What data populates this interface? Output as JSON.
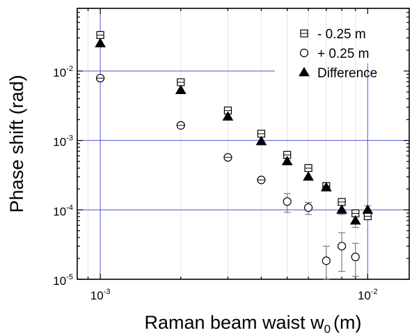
{
  "chart_data": {
    "type": "scatter",
    "xlabel": "Raman beam waist w",
    "xlabel_subscript": "0",
    "xlabel_unit": "(m)",
    "ylabel": "Phase shift (rad)",
    "xscale": "log",
    "yscale": "log",
    "xlim": [
      0.00082,
      0.0143
    ],
    "ylim": [
      1e-05,
      0.08
    ],
    "x_ticks": [
      {
        "value": 0.001,
        "base": "10",
        "exp": "-3"
      },
      {
        "value": 0.01,
        "base": "10",
        "exp": "-2"
      }
    ],
    "y_ticks": [
      {
        "value": 1e-05,
        "base": "10",
        "exp": "-5"
      },
      {
        "value": 0.0001,
        "base": "10",
        "exp": "-4"
      },
      {
        "value": 0.001,
        "base": "10",
        "exp": "-3"
      },
      {
        "value": 0.01,
        "base": "10",
        "exp": "-2"
      }
    ],
    "reference_lines": {
      "horizontal": [
        0.0001,
        0.001,
        0.01
      ],
      "vertical": [
        0.001,
        0.01
      ],
      "color": "#4f55d6"
    },
    "legend_position": "top-right",
    "series": [
      {
        "name": "- 0.25 m",
        "marker": "square-crossed",
        "points": [
          {
            "x": 0.001,
            "y": 0.033
          },
          {
            "x": 0.002,
            "y": 0.0069
          },
          {
            "x": 0.003,
            "y": 0.0027
          },
          {
            "x": 0.004,
            "y": 0.00125
          },
          {
            "x": 0.005,
            "y": 0.00062
          },
          {
            "x": 0.006,
            "y": 0.0004
          },
          {
            "x": 0.007,
            "y": 0.00022
          },
          {
            "x": 0.008,
            "y": 0.00013
          },
          {
            "x": 0.009,
            "y": 8.9e-05
          },
          {
            "x": 0.01,
            "y": 8.1e-05
          }
        ]
      },
      {
        "name": "+ 0.25 m",
        "marker": "circle-open",
        "points": [
          {
            "x": 0.001,
            "y": 0.0079
          },
          {
            "x": 0.002,
            "y": 0.00165
          },
          {
            "x": 0.003,
            "y": 0.00057
          },
          {
            "x": 0.004,
            "y": 0.00027
          },
          {
            "x": 0.005,
            "y": 0.000132,
            "err_low": 9.2e-05,
            "err_high": 0.000172
          },
          {
            "x": 0.006,
            "y": 0.000108,
            "err_low": 8.6e-05,
            "err_high": 0.000128
          },
          {
            "x": 0.007,
            "y": 1.85e-05,
            "err_low": 1e-05,
            "err_high": 3e-05
          },
          {
            "x": 0.008,
            "y": 3e-05,
            "err_low": 1.3e-05,
            "err_high": 4.7e-05
          },
          {
            "x": 0.009,
            "y": 2.1e-05,
            "err_low": 1.1e-05,
            "err_high": 3.3e-05
          }
        ]
      },
      {
        "name": "Difference",
        "marker": "triangle-filled",
        "points": [
          {
            "x": 0.001,
            "y": 0.025
          },
          {
            "x": 0.002,
            "y": 0.0053
          },
          {
            "x": 0.003,
            "y": 0.0022
          },
          {
            "x": 0.004,
            "y": 0.00097
          },
          {
            "x": 0.005,
            "y": 0.0005
          },
          {
            "x": 0.006,
            "y": 0.0003
          },
          {
            "x": 0.007,
            "y": 0.00021
          },
          {
            "x": 0.008,
            "y": 0.0001,
            "err_low": 8.6e-05,
            "err_high": 0.000116
          },
          {
            "x": 0.009,
            "y": 7e-05,
            "err_low": 5.6e-05,
            "err_high": 8.3e-05
          },
          {
            "x": 0.01,
            "y": 0.0001,
            "err_low": 8.8e-05,
            "err_high": 0.000114
          }
        ]
      }
    ]
  }
}
